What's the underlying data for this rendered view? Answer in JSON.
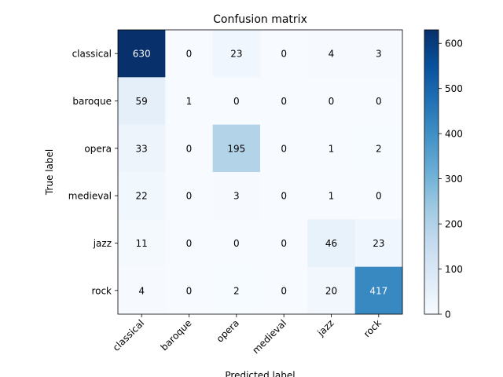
{
  "chart_data": {
    "type": "heatmap",
    "title": "Confusion matrix",
    "xlabel": "Predicted label",
    "ylabel": "True label",
    "x_categories": [
      "classical",
      "baroque",
      "opera",
      "medieval",
      "jazz",
      "rock"
    ],
    "y_categories": [
      "classical",
      "baroque",
      "opera",
      "medieval",
      "jazz",
      "rock"
    ],
    "values": [
      [
        630,
        0,
        23,
        0,
        4,
        3
      ],
      [
        59,
        1,
        0,
        0,
        0,
        0
      ],
      [
        33,
        0,
        195,
        0,
        1,
        2
      ],
      [
        22,
        0,
        3,
        0,
        1,
        0
      ],
      [
        11,
        0,
        0,
        0,
        46,
        23
      ],
      [
        4,
        0,
        2,
        0,
        20,
        417
      ]
    ],
    "colormap": "Blues",
    "color_range": [
      0,
      630
    ],
    "colorbar_ticks": [
      0,
      100,
      200,
      300,
      400,
      500,
      600
    ],
    "xtick_rotation_deg": 45
  }
}
